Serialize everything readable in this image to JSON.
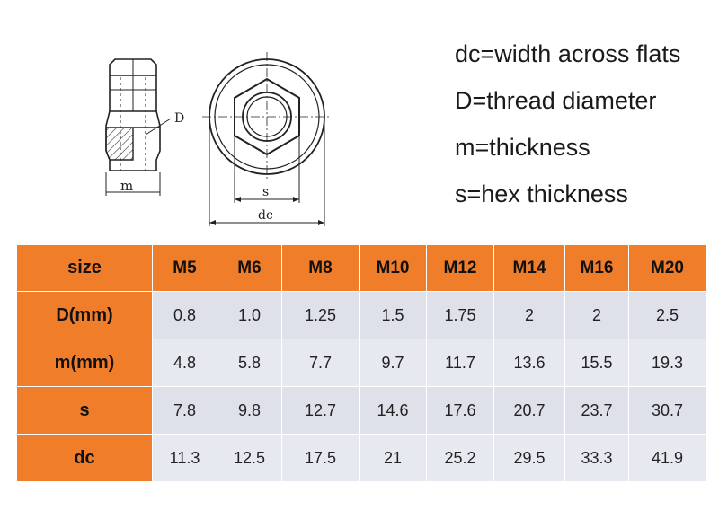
{
  "drawing": {
    "side_view": {
      "dimension_label_m": "m",
      "callout_label_D": "D"
    },
    "top_view": {
      "dimension_label_s": "s",
      "dimension_label_dc": "dc"
    }
  },
  "legend": [
    "dc=width across flats",
    "D=thread diameter",
    "m=thickness",
    "s=hex thickness"
  ],
  "table": {
    "header_label": "size",
    "columns": [
      "M5",
      "M6",
      "M8",
      "M10",
      "M12",
      "M14",
      "M16",
      "M20"
    ],
    "rows": [
      {
        "label": "D(mm)",
        "values": [
          "0.8",
          "1.0",
          "1.25",
          "1.5",
          "1.75",
          "2",
          "2",
          "2.5"
        ]
      },
      {
        "label": "m(mm)",
        "values": [
          "4.8",
          "5.8",
          "7.7",
          "9.7",
          "11.7",
          "13.6",
          "15.5",
          "19.3"
        ]
      },
      {
        "label": "s",
        "values": [
          "7.8",
          "9.8",
          "12.7",
          "14.6",
          "17.6",
          "20.7",
          "23.7",
          "30.7"
        ]
      },
      {
        "label": "dc",
        "values": [
          "11.3",
          "12.5",
          "17.5",
          "21",
          "25.2",
          "29.5",
          "33.3",
          "41.9"
        ]
      }
    ]
  },
  "colors": {
    "header_orange": "#ef7d2a",
    "cell_gray": "#dfe1ea",
    "line_dark": "#222222"
  }
}
